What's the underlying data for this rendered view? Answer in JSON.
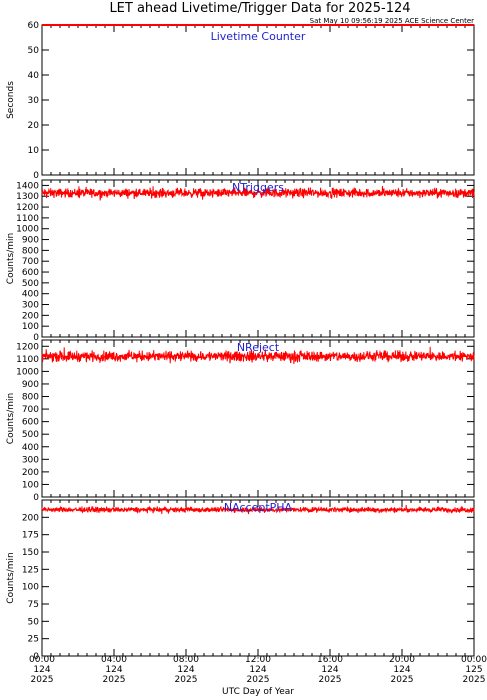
{
  "title": "LET ahead Livetime/Trigger Data for 2025-124",
  "subtitle": "Sat May 10 09:56:19 2025 ACE Science Center",
  "xlabel": "UTC Day of Year",
  "colors": {
    "series": "#ff0000",
    "panel_label": "#1f1fd0",
    "axes": "#000000"
  },
  "chart_data": [
    {
      "type": "line",
      "label": "Livetime Counter",
      "ylabel": "Seconds",
      "ylim": [
        0,
        60
      ],
      "yticks": [
        0,
        10,
        20,
        30,
        40,
        50,
        60
      ],
      "x_range_hours": [
        0,
        24
      ],
      "series": [
        {
          "values": [
            60
          ]
        }
      ],
      "level": 60,
      "noise": 0
    },
    {
      "type": "line",
      "label": "NTriggers",
      "ylabel": "Counts/min",
      "ylim": [
        0,
        1450
      ],
      "yticks": [
        0,
        100,
        200,
        300,
        400,
        500,
        600,
        700,
        800,
        900,
        1000,
        1100,
        1200,
        1300,
        1400
      ],
      "x_range_hours": [
        0,
        24
      ],
      "level": 1330,
      "noise": 45
    },
    {
      "type": "line",
      "label": "NReject",
      "ylabel": "Counts/min",
      "ylim": [
        0,
        1250
      ],
      "yticks": [
        0,
        100,
        200,
        300,
        400,
        500,
        600,
        700,
        800,
        900,
        1000,
        1100,
        1200
      ],
      "x_range_hours": [
        0,
        24
      ],
      "level": 1120,
      "noise": 45
    },
    {
      "type": "line",
      "label": "NAcceptPHA",
      "ylabel": "Counts/min",
      "ylim": [
        0,
        225
      ],
      "yticks": [
        0,
        25,
        50,
        75,
        100,
        125,
        150,
        175,
        200
      ],
      "x_range_hours": [
        0,
        24
      ],
      "level": 211,
      "noise": 4
    }
  ],
  "xticks": [
    {
      "time": "00:00",
      "day": "124",
      "year": "2025"
    },
    {
      "time": "04:00",
      "day": "124",
      "year": "2025"
    },
    {
      "time": "08:00",
      "day": "124",
      "year": "2025"
    },
    {
      "time": "12:00",
      "day": "124",
      "year": "2025"
    },
    {
      "time": "16:00",
      "day": "124",
      "year": "2025"
    },
    {
      "time": "20:00",
      "day": "124",
      "year": "2025"
    },
    {
      "time": "00:00",
      "day": "125",
      "year": "2025"
    }
  ]
}
